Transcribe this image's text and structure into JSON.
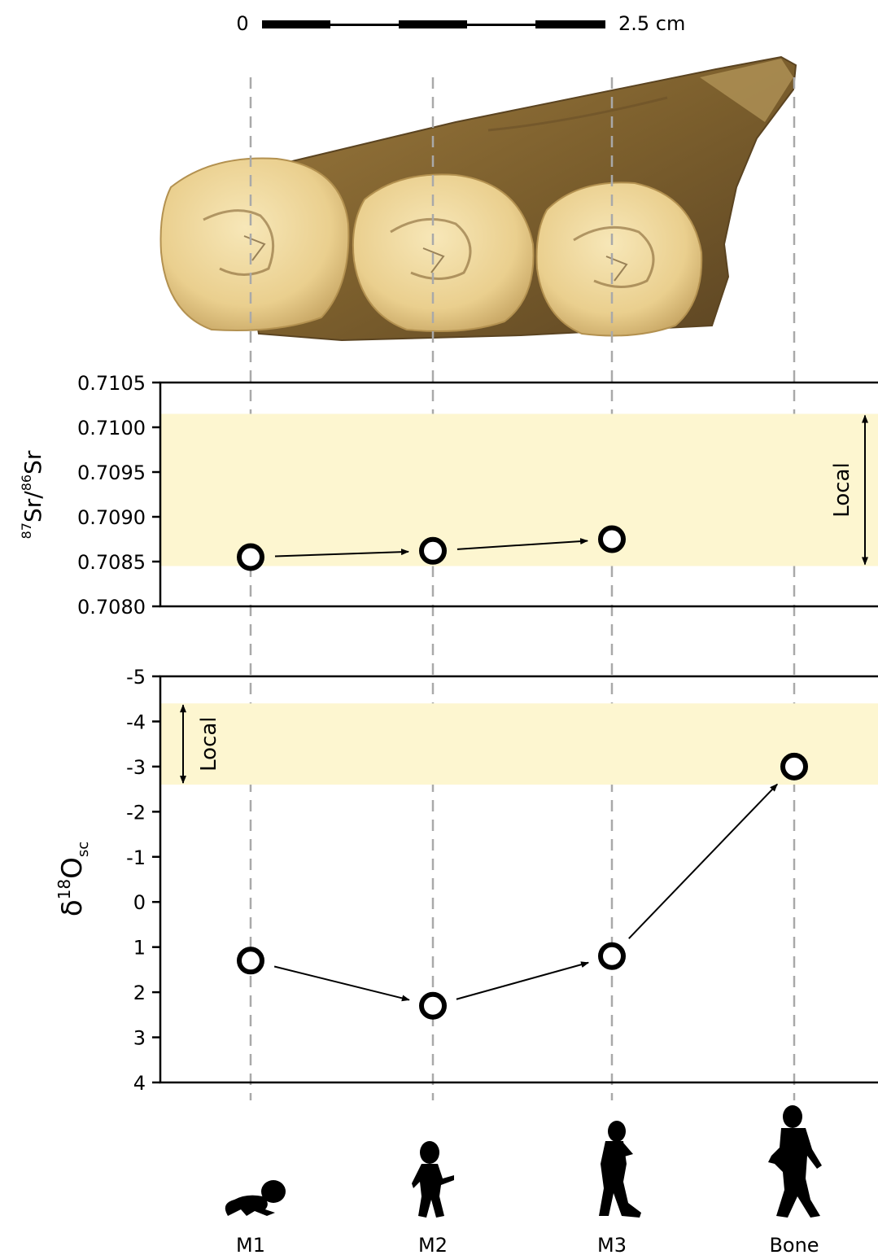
{
  "scale_bar": {
    "start_label": "0",
    "end_label": "2.5 cm"
  },
  "specimen": {
    "kind": "mandible fragment with three molars",
    "teeth": [
      "M1",
      "M2",
      "M3"
    ]
  },
  "chart_data": [
    {
      "type": "scatter",
      "ylabel_parts": {
        "sup1": "87",
        "base1": "Sr/",
        "sup2": "86",
        "base2": "Sr"
      },
      "categories": [
        "M1",
        "M2",
        "M3",
        "Bone"
      ],
      "series": [
        {
          "values": [
            0.70855,
            0.70862,
            0.70875,
            null
          ]
        }
      ],
      "ylim": [
        0.708,
        0.7105
      ],
      "yticks": [
        "0.7105",
        "0.7100",
        "0.7095",
        "0.7090",
        "0.7085",
        "0.7080"
      ],
      "y_inverted": false,
      "local_band": {
        "label": "Local",
        "range": [
          0.70845,
          0.71015
        ],
        "color": "#fdf6d0"
      },
      "arrows": [
        [
          "M1",
          "M2"
        ],
        [
          "M2",
          "M3"
        ]
      ],
      "grid": "dashed vertical guides at each category"
    },
    {
      "type": "scatter",
      "ylabel_parts": {
        "base1": "δ",
        "sup1": "18",
        "base2": "O",
        "sub1": "sc"
      },
      "categories": [
        "M1",
        "M2",
        "M3",
        "Bone"
      ],
      "series": [
        {
          "values": [
            1.3,
            2.3,
            1.2,
            -3.0
          ]
        }
      ],
      "ylim": [
        -5,
        4
      ],
      "yticks": [
        "-5",
        "-4",
        "-3",
        "-2",
        "-1",
        "0",
        "1",
        "2",
        "3",
        "4"
      ],
      "y_inverted": true,
      "local_band": {
        "label": "Local",
        "range": [
          -4.4,
          -2.6
        ],
        "color": "#fdf6d0"
      },
      "arrows": [
        [
          "M1",
          "M2"
        ],
        [
          "M2",
          "M3"
        ],
        [
          "M3",
          "Bone"
        ]
      ],
      "grid": "dashed vertical guides at each category"
    }
  ],
  "life_stages": [
    {
      "label": "M1",
      "icon": "crawling-infant-icon"
    },
    {
      "label": "M2",
      "icon": "child-walking-icon"
    },
    {
      "label": "M3",
      "icon": "adolescent-walking-icon"
    },
    {
      "label": "Bone",
      "icon": "adult-walking-icon"
    }
  ]
}
